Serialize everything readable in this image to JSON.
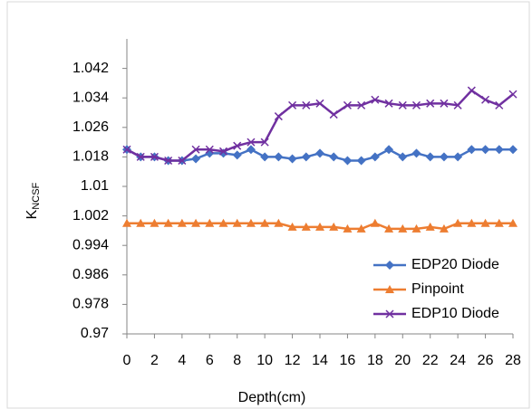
{
  "chart_data": {
    "type": "line",
    "ylabel": "K",
    "ylabel_sub": "NCSF",
    "xlabel": "Depth(cm)",
    "x": [
      0,
      1,
      2,
      3,
      4,
      5,
      6,
      7,
      8,
      9,
      10,
      11,
      12,
      13,
      14,
      15,
      16,
      17,
      18,
      19,
      20,
      21,
      22,
      23,
      24,
      25,
      26,
      27,
      28
    ],
    "xlim": [
      0,
      28
    ],
    "xticks": [
      0,
      2,
      4,
      6,
      8,
      10,
      12,
      14,
      16,
      18,
      20,
      22,
      24,
      26,
      28
    ],
    "ylim": [
      0.97,
      1.05
    ],
    "yticks": [
      0.97,
      0.978,
      0.986,
      0.994,
      1.002,
      1.01,
      1.018,
      1.026,
      1.034,
      1.042
    ],
    "grid": false,
    "legend": "lower right",
    "series": [
      {
        "name": "EDP20 Diode",
        "color": "#4472c4",
        "marker": "diamond",
        "values": [
          1.02,
          1.018,
          1.018,
          1.017,
          1.017,
          1.0175,
          1.019,
          1.019,
          1.0185,
          1.02,
          1.018,
          1.018,
          1.0175,
          1.018,
          1.019,
          1.018,
          1.017,
          1.017,
          1.018,
          1.02,
          1.018,
          1.019,
          1.018,
          1.018,
          1.018,
          1.02,
          1.02,
          1.02,
          1.02
        ]
      },
      {
        "name": "Pinpoint",
        "color": "#ed7d31",
        "marker": "triangle",
        "values": [
          1,
          1,
          1,
          1,
          1,
          1,
          1,
          1,
          1,
          1,
          1,
          1,
          0.999,
          0.999,
          0.999,
          0.999,
          0.9985,
          0.9985,
          1,
          0.9985,
          0.9985,
          0.9985,
          0.999,
          0.9985,
          1,
          1,
          1,
          1,
          1
        ]
      },
      {
        "name": "EDP10 Diode",
        "color": "#7030a0",
        "marker": "x",
        "values": [
          1.02,
          1.018,
          1.018,
          1.017,
          1.017,
          1.02,
          1.02,
          1.0195,
          1.021,
          1.022,
          1.022,
          1.029,
          1.032,
          1.032,
          1.0325,
          1.0295,
          1.032,
          1.032,
          1.0335,
          1.0325,
          1.032,
          1.032,
          1.0325,
          1.0325,
          1.032,
          1.036,
          1.0335,
          1.032,
          1.035
        ]
      }
    ]
  }
}
